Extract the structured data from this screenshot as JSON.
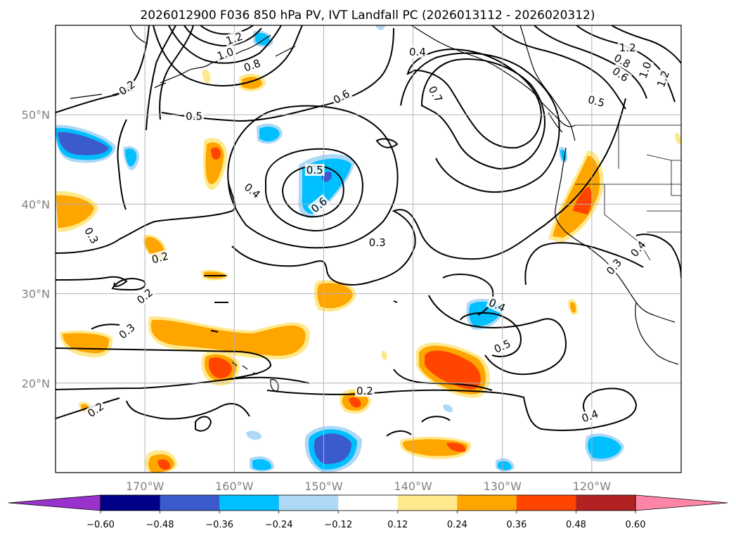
{
  "title": "2026012900 F036 850 hPa PV, IVT Landfall PC (2026013112 - 2026020312)",
  "map": {
    "lat_range": [
      10,
      60
    ],
    "lon_range": [
      -180,
      -110
    ],
    "lat_ticks": [
      {
        "value": 20,
        "label": "20°N"
      },
      {
        "value": 30,
        "label": "30°N"
      },
      {
        "value": 40,
        "label": "40°N"
      },
      {
        "value": 50,
        "label": "50°N"
      }
    ],
    "lon_ticks": [
      {
        "value": -170,
        "label": "170°W"
      },
      {
        "value": -160,
        "label": "160°W"
      },
      {
        "value": -150,
        "label": "150°W"
      },
      {
        "value": -140,
        "label": "140°W"
      },
      {
        "value": -130,
        "label": "130°W"
      },
      {
        "value": -120,
        "label": "120°W"
      }
    ]
  },
  "contour_labels": [
    {
      "text": "1.2",
      "lat": 57.5,
      "lon": -116.0,
      "rot": 0
    },
    {
      "text": "0.8",
      "lat": 56.0,
      "lon": -116.6,
      "rot": 30
    },
    {
      "text": "0.6",
      "lat": 54.5,
      "lon": -116.8,
      "rot": 35
    },
    {
      "text": "1.0",
      "lat": 55.0,
      "lon": -114.0,
      "rot": -70
    },
    {
      "text": "1.2",
      "lat": 54.0,
      "lon": -112.0,
      "rot": -70
    },
    {
      "text": "0.5",
      "lat": 51.5,
      "lon": -119.5,
      "rot": 15
    },
    {
      "text": "0.4",
      "lat": 57.0,
      "lon": -139.5,
      "rot": 0
    },
    {
      "text": "0.6",
      "lat": 52.0,
      "lon": -148.0,
      "rot": -30
    },
    {
      "text": "0.7",
      "lat": 52.3,
      "lon": -137.5,
      "rot": 60
    },
    {
      "text": "0.5",
      "lat": 49.8,
      "lon": -164.5,
      "rot": 0
    },
    {
      "text": "0.2",
      "lat": 53.0,
      "lon": -172.0,
      "rot": -35
    },
    {
      "text": "1.2",
      "lat": 58.5,
      "lon": -160.0,
      "rot": -20
    },
    {
      "text": "1.0",
      "lat": 56.8,
      "lon": -161.0,
      "rot": -20
    },
    {
      "text": "0.8",
      "lat": 55.5,
      "lon": -158.0,
      "rot": -20
    },
    {
      "text": "0.5",
      "lat": 43.8,
      "lon": -151.0,
      "rot": 0
    },
    {
      "text": "0.6",
      "lat": 39.9,
      "lon": -150.5,
      "rot": -40
    },
    {
      "text": "0.4",
      "lat": 41.5,
      "lon": -158.0,
      "rot": 40
    },
    {
      "text": "0.3",
      "lat": 36.5,
      "lon": -176.0,
      "rot": 60
    },
    {
      "text": "0.2",
      "lat": 34.0,
      "lon": -168.3,
      "rot": -15
    },
    {
      "text": "0.3",
      "lat": 35.7,
      "lon": -144.0,
      "rot": 0
    },
    {
      "text": "0.2",
      "lat": 29.7,
      "lon": -170.0,
      "rot": -40
    },
    {
      "text": "0.3",
      "lat": 25.8,
      "lon": -172.0,
      "rot": -40
    },
    {
      "text": "0.2",
      "lat": 17.0,
      "lon": -175.5,
      "rot": -35
    },
    {
      "text": "0.2",
      "lat": 19.1,
      "lon": -145.4,
      "rot": 0
    },
    {
      "text": "0.4",
      "lat": 28.7,
      "lon": -130.6,
      "rot": 25
    },
    {
      "text": "0.5",
      "lat": 24.1,
      "lon": -130.0,
      "rot": -25
    },
    {
      "text": "0.4",
      "lat": 16.3,
      "lon": -120.2,
      "rot": -20
    },
    {
      "text": "0.4",
      "lat": 35.0,
      "lon": -114.8,
      "rot": -50
    },
    {
      "text": "0.3",
      "lat": 33.0,
      "lon": -117.5,
      "rot": -50
    }
  ],
  "colorbar": {
    "ticks": [
      "−0.60",
      "−0.48",
      "−0.36",
      "−0.24",
      "−0.12",
      "0.12",
      "0.24",
      "0.36",
      "0.48",
      "0.60"
    ],
    "colors": [
      "#9932cc",
      "#00008b",
      "#3b5bcc",
      "#00bfff",
      "#add8f6",
      "#ffffff",
      "#ffe98c",
      "#ffa500",
      "#ff4500",
      "#b22222",
      "#ff85a8"
    ]
  }
}
